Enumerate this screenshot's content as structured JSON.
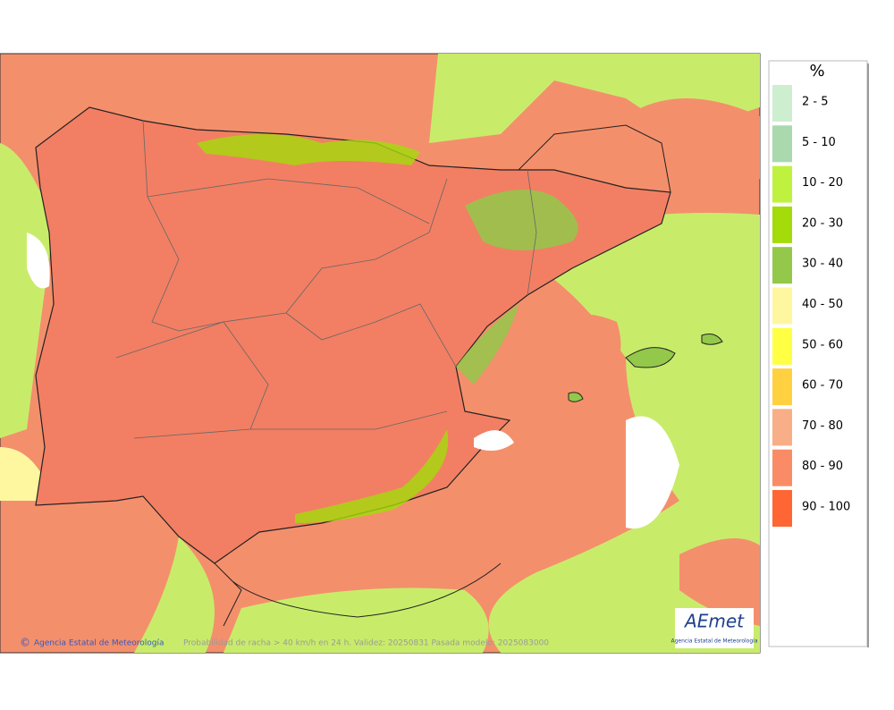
{
  "map": {
    "legend": {
      "title": "%",
      "items": [
        {
          "label": "2 - 5",
          "color": "#cdeecf"
        },
        {
          "label": "5 - 10",
          "color": "#a9d9ad"
        },
        {
          "label": "10 - 20",
          "color": "#bff23f"
        },
        {
          "label": "20 - 30",
          "color": "#a3dc0a"
        },
        {
          "label": "30 - 40",
          "color": "#93c84a"
        },
        {
          "label": "40 - 50",
          "color": "#fff6a0"
        },
        {
          "label": "50 - 60",
          "color": "#ffff44"
        },
        {
          "label": "60 - 70",
          "color": "#ffd040"
        },
        {
          "label": "70 - 80",
          "color": "#f8ae86"
        },
        {
          "label": "80 - 90",
          "color": "#f98c66"
        },
        {
          "label": "90 - 100",
          "color": "#ff6633"
        }
      ]
    },
    "footer": {
      "copyright": "©",
      "agency": "Agencia Estatal de Meteorología",
      "caption": "Probabilidad de racha > 40 km/h en 24 h. Validez: 20250831 Pasada modelo: 2025083000"
    },
    "logo": {
      "name": "AEmet",
      "subtitle": "Agencia Estatal de Meteorología"
    }
  }
}
